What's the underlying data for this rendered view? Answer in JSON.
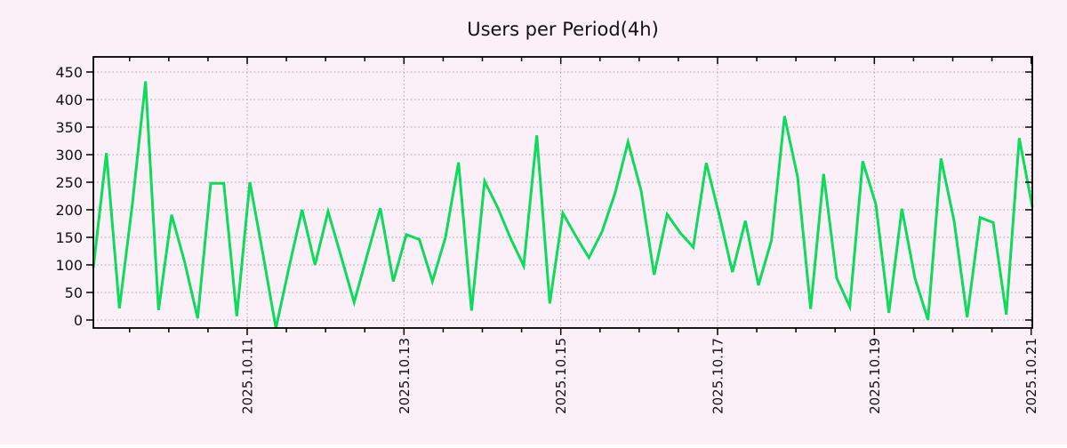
{
  "chart": {
    "title": "Users per Period(4h)",
    "background_color": "#fcf0f8",
    "line_color": "#0cdb5c",
    "grid_color": "#a2a2a2",
    "border_color": "#000000",
    "text_color": "#111111"
  },
  "chart_data": {
    "type": "line",
    "title": "Users per Period(4h)",
    "xlabel": "",
    "ylabel": "",
    "period_hours": 4,
    "grid": true,
    "legend_position": "none",
    "y_ticks": [
      0,
      50,
      100,
      150,
      200,
      250,
      300,
      350,
      400,
      450
    ],
    "ylim": [
      -15,
      477
    ],
    "x_tick_labels": [
      "2025.10.11",
      "2025.10.13",
      "2025.10.15",
      "2025.10.17",
      "2025.10.19",
      "2025.10.21"
    ],
    "x_minor_divisions_per_label": 4,
    "series": [
      {
        "name": "Users",
        "values": [
          95,
          303,
          21,
          212,
          433,
          18,
          191,
          105,
          3,
          248,
          248,
          7,
          250,
          120,
          -15,
          95,
          200,
          100,
          197,
          115,
          32,
          118,
          203,
          70,
          155,
          146,
          70,
          150,
          286,
          17,
          252,
          204,
          148,
          98,
          335,
          30,
          194,
          152,
          113,
          160,
          230,
          323,
          235,
          82,
          192,
          158,
          132,
          285,
          190,
          87,
          180,
          63,
          145,
          370,
          260,
          20,
          265,
          76,
          24,
          288,
          210,
          13,
          202,
          76,
          0,
          293,
          180,
          5,
          186,
          177,
          10,
          330,
          205
        ]
      }
    ]
  }
}
